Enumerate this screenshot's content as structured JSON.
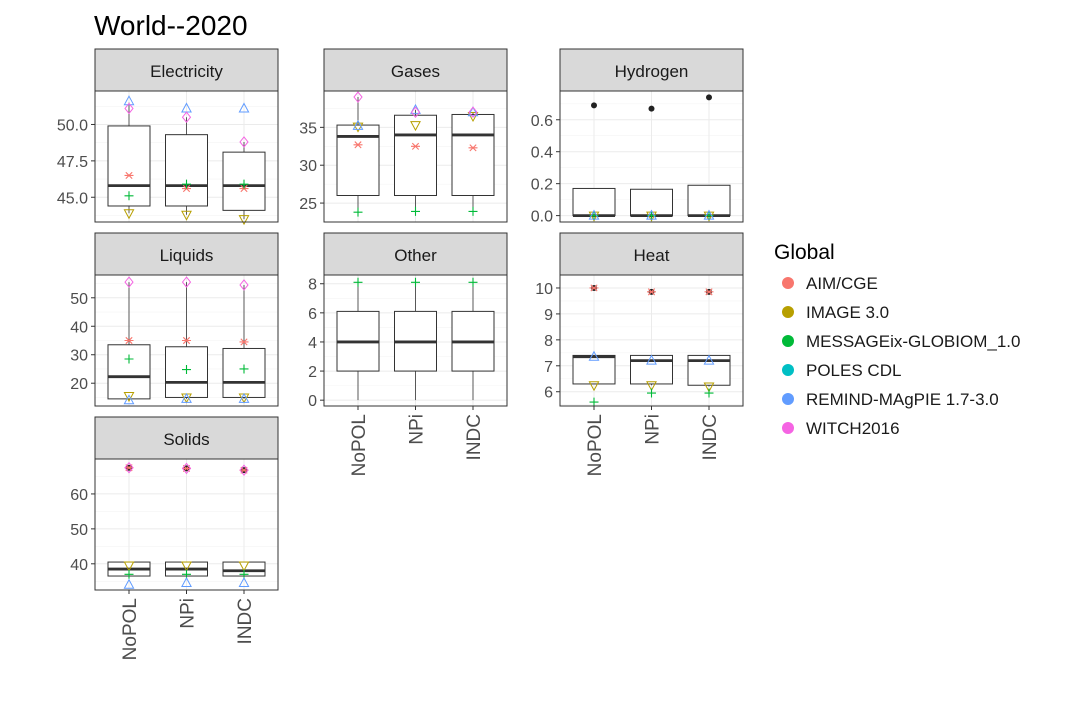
{
  "chart_data": {
    "type": "boxplot",
    "title": "World--2020",
    "categories": [
      "NoPOL",
      "NPi",
      "INDC"
    ],
    "legend": {
      "title": "Global",
      "position": "right",
      "entries": [
        {
          "name": "AIM/CGE",
          "color": "#F8766D",
          "shape": "asterisk"
        },
        {
          "name": "IMAGE 3.0",
          "color": "#B79F00",
          "shape": "triangle-down"
        },
        {
          "name": "MESSAGEix-GLOBIOM_1.0",
          "color": "#00BA38",
          "shape": "plus"
        },
        {
          "name": "POLES CDL",
          "color": "#00BFC4",
          "shape": "cross"
        },
        {
          "name": "REMIND-MAgPIE 1.7-3.0",
          "color": "#619CFF",
          "shape": "triangle-up"
        },
        {
          "name": "WITCH2016",
          "color": "#F564E3",
          "shape": "diamond"
        }
      ]
    },
    "grid": true,
    "panels": [
      {
        "name": "Electricity",
        "ylim": [
          43.3,
          52.3
        ],
        "yticks": [
          45.0,
          47.5,
          50.0
        ],
        "ytick_labels": [
          "45.0",
          "47.5",
          "50.0"
        ],
        "boxes": [
          {
            "q1": 44.4,
            "median": 45.8,
            "q3": 49.9,
            "min": 43.9,
            "max": 51.5
          },
          {
            "q1": 44.4,
            "median": 45.8,
            "q3": 49.3,
            "min": 43.8,
            "max": 50.5
          },
          {
            "q1": 44.1,
            "median": 45.8,
            "q3": 48.1,
            "min": 43.5,
            "max": 48.8
          }
        ],
        "outliers": [],
        "points": {
          "AIM/CGE": [
            46.5,
            45.6,
            45.6
          ],
          "IMAGE 3.0": [
            43.9,
            43.8,
            43.5
          ],
          "MESSAGEix-GLOBIOM_1.0": [
            45.1,
            45.9,
            45.9
          ],
          "REMIND-MAgPIE 1.7-3.0": [
            51.6,
            51.1,
            51.1
          ],
          "WITCH2016": [
            51.1,
            50.5,
            48.8
          ]
        }
      },
      {
        "name": "Gases",
        "ylim": [
          22.5,
          39.8
        ],
        "yticks": [
          25,
          30,
          35
        ],
        "ytick_labels": [
          "25",
          "30",
          "35"
        ],
        "boxes": [
          {
            "q1": 26.0,
            "median": 33.8,
            "q3": 35.3,
            "min": 23.8,
            "max": 39.0
          },
          {
            "q1": 26.0,
            "median": 34.0,
            "q3": 36.6,
            "min": 23.9,
            "max": 37.3
          },
          {
            "q1": 26.0,
            "median": 34.0,
            "q3": 36.7,
            "min": 23.9,
            "max": 37.0
          }
        ],
        "outliers": [],
        "points": {
          "AIM/CGE": [
            32.7,
            32.5,
            32.3
          ],
          "IMAGE 3.0": [
            35.1,
            35.3,
            36.5
          ],
          "MESSAGEix-GLOBIOM_1.0": [
            23.8,
            23.9,
            23.9
          ],
          "REMIND-MAgPIE 1.7-3.0": [
            35.2,
            37.3,
            37.0
          ],
          "WITCH2016": [
            39.0,
            37.0,
            37.0
          ]
        }
      },
      {
        "name": "Hydrogen",
        "ylim": [
          -0.04,
          0.78
        ],
        "yticks": [
          0.0,
          0.2,
          0.4,
          0.6
        ],
        "ytick_labels": [
          "0.0",
          "0.2",
          "0.4",
          "0.6"
        ],
        "boxes": [
          {
            "q1": 0.0,
            "median": 0.0,
            "q3": 0.17,
            "min": 0.0,
            "max": 0.17
          },
          {
            "q1": 0.0,
            "median": 0.0,
            "q3": 0.165,
            "min": 0.0,
            "max": 0.165
          },
          {
            "q1": 0.0,
            "median": 0.0,
            "q3": 0.19,
            "min": 0.0,
            "max": 0.19
          }
        ],
        "outliers": [
          0.69,
          0.67,
          0.74
        ],
        "points": {
          "IMAGE 3.0": [
            0.0,
            0.0,
            0.0
          ],
          "MESSAGEix-GLOBIOM_1.0": [
            0.0,
            0.0,
            0.0
          ],
          "REMIND-MAgPIE 1.7-3.0": [
            0.0,
            0.0,
            0.0
          ]
        }
      },
      {
        "name": "Liquids",
        "ylim": [
          12,
          58
        ],
        "yticks": [
          20,
          30,
          40,
          50
        ],
        "ytick_labels": [
          "20",
          "30",
          "40",
          "50"
        ],
        "boxes": [
          {
            "q1": 14.5,
            "median": 22.3,
            "q3": 33.5,
            "min": 14.0,
            "max": 55.5
          },
          {
            "q1": 15.0,
            "median": 20.3,
            "q3": 32.8,
            "min": 14.5,
            "max": 55.5
          },
          {
            "q1": 15.0,
            "median": 20.3,
            "q3": 32.2,
            "min": 14.5,
            "max": 54.5
          }
        ],
        "outliers": [],
        "points": {
          "AIM/CGE": [
            35.0,
            35.0,
            34.5
          ],
          "IMAGE 3.0": [
            15.5,
            15.0,
            15.0
          ],
          "MESSAGEix-GLOBIOM_1.0": [
            28.5,
            24.8,
            25.0
          ],
          "REMIND-MAgPIE 1.7-3.0": [
            14.0,
            14.5,
            14.5
          ],
          "WITCH2016": [
            55.5,
            55.5,
            54.5
          ]
        }
      },
      {
        "name": "Other",
        "ylim": [
          -0.4,
          8.6
        ],
        "yticks": [
          0,
          2,
          4,
          6,
          8
        ],
        "ytick_labels": [
          "0",
          "2",
          "4",
          "6",
          "8"
        ],
        "boxes": [
          {
            "q1": 2.0,
            "median": 4.0,
            "q3": 6.1,
            "min": 0.0,
            "max": 8.1
          },
          {
            "q1": 2.0,
            "median": 4.0,
            "q3": 6.1,
            "min": 0.0,
            "max": 8.1
          },
          {
            "q1": 2.0,
            "median": 4.0,
            "q3": 6.1,
            "min": 0.0,
            "max": 8.1
          }
        ],
        "outliers": [],
        "points": {
          "MESSAGEix-GLOBIOM_1.0": [
            8.1,
            8.1,
            8.1
          ]
        }
      },
      {
        "name": "Heat",
        "ylim": [
          5.45,
          10.5
        ],
        "yticks": [
          6,
          7,
          8,
          9,
          10
        ],
        "ytick_labels": [
          "6",
          "7",
          "8",
          "9",
          "10"
        ],
        "boxes": [
          {
            "q1": 6.3,
            "median": 7.35,
            "q3": 7.4,
            "min": 6.3,
            "max": 7.4
          },
          {
            "q1": 6.3,
            "median": 7.2,
            "q3": 7.4,
            "min": 6.25,
            "max": 7.4
          },
          {
            "q1": 6.25,
            "median": 7.2,
            "q3": 7.4,
            "min": 6.2,
            "max": 7.4
          }
        ],
        "outliers": [
          10.0,
          9.85,
          9.85
        ],
        "points": {
          "AIM/CGE": [
            10.0,
            9.85,
            9.85
          ],
          "IMAGE 3.0": [
            6.25,
            6.25,
            6.2
          ],
          "MESSAGEix-GLOBIOM_1.0": [
            5.6,
            5.95,
            5.95
          ],
          "REMIND-MAgPIE 1.7-3.0": [
            7.35,
            7.2,
            7.2
          ]
        }
      },
      {
        "name": "Solids",
        "ylim": [
          32.5,
          70.0
        ],
        "yticks": [
          40,
          50,
          60
        ],
        "ytick_labels": [
          "40",
          "50",
          "60"
        ],
        "boxes": [
          {
            "q1": 36.5,
            "median": 38.5,
            "q3": 40.5,
            "min": 36.5,
            "max": 40.5
          },
          {
            "q1": 36.5,
            "median": 38.5,
            "q3": 40.5,
            "min": 36.5,
            "max": 40.5
          },
          {
            "q1": 36.5,
            "median": 38.0,
            "q3": 40.5,
            "min": 36.5,
            "max": 40.5
          }
        ],
        "outliers": [
          67.5,
          67.3,
          66.8
        ],
        "points": {
          "AIM/CGE": [
            67.5,
            67.3,
            66.8
          ],
          "IMAGE 3.0": [
            39.5,
            39.5,
            39.5
          ],
          "MESSAGEix-GLOBIOM_1.0": [
            37.0,
            37.0,
            37.0
          ],
          "REMIND-MAgPIE 1.7-3.0": [
            34.0,
            34.5,
            34.5
          ],
          "WITCH2016": [
            67.5,
            67.3,
            66.8
          ]
        }
      }
    ]
  }
}
